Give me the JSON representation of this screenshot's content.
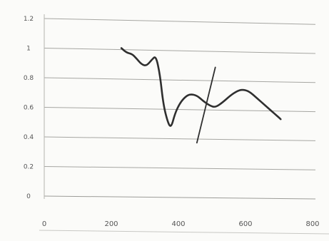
{
  "chart_data": {
    "type": "line",
    "title": "",
    "xlabel": "",
    "ylabel": "",
    "grid": true,
    "legend": "none",
    "xlim": [
      0,
      800
    ],
    "ylim": [
      0,
      1.2
    ],
    "x_ticks": [
      "0",
      "200",
      "400",
      "600",
      "800"
    ],
    "y_ticks": [
      "0",
      "0.2",
      "0.4",
      "0.6",
      "0.8",
      "1",
      "1.2"
    ],
    "series": [
      {
        "values": [
          [
            230,
            1.0
          ],
          [
            245,
            0.97
          ],
          [
            262,
            0.96
          ],
          [
            275,
            0.93
          ],
          [
            290,
            0.89
          ],
          [
            305,
            0.88
          ],
          [
            320,
            0.92
          ],
          [
            333,
            0.95
          ],
          [
            345,
            0.82
          ],
          [
            355,
            0.62
          ],
          [
            368,
            0.5
          ],
          [
            378,
            0.46
          ],
          [
            390,
            0.56
          ],
          [
            405,
            0.63
          ],
          [
            420,
            0.67
          ],
          [
            435,
            0.69
          ],
          [
            455,
            0.68
          ],
          [
            475,
            0.64
          ],
          [
            495,
            0.61
          ],
          [
            510,
            0.6
          ],
          [
            530,
            0.63
          ],
          [
            555,
            0.68
          ],
          [
            575,
            0.71
          ],
          [
            590,
            0.72
          ],
          [
            610,
            0.71
          ],
          [
            635,
            0.66
          ],
          [
            660,
            0.61
          ],
          [
            685,
            0.56
          ],
          [
            705,
            0.52
          ]
        ],
        "color": "#2f2f2f"
      }
    ],
    "annotations": [
      {
        "type": "segment",
        "from": [
          455,
          0.36
        ],
        "to": [
          510,
          0.87
        ],
        "color": "#2f2f2f"
      }
    ]
  }
}
